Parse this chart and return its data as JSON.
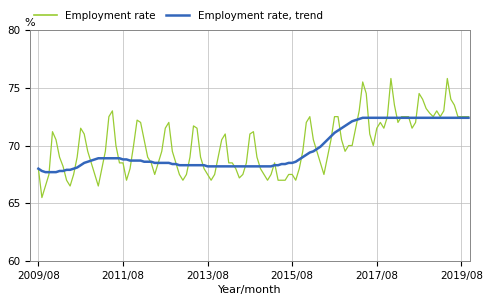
{
  "ylabel_top": "%",
  "xlabel": "Year/month",
  "ylim": [
    60,
    80
  ],
  "yticks": [
    60,
    65,
    70,
    75,
    80
  ],
  "xtick_labels": [
    "2009/08",
    "2011/08",
    "2013/08",
    "2015/08",
    "2017/08",
    "2019/08"
  ],
  "line_color_employment": "#99cc33",
  "line_color_trend": "#3366bb",
  "legend_entries": [
    "Employment rate",
    "Employment rate, trend"
  ],
  "background_color": "#ffffff",
  "grid_color": "#bbbbbb",
  "employment_rate": [
    68.0,
    65.5,
    66.5,
    67.5,
    71.2,
    70.5,
    69.0,
    68.2,
    67.0,
    66.5,
    67.5,
    69.0,
    71.5,
    71.0,
    69.5,
    68.5,
    67.5,
    66.5,
    68.0,
    69.5,
    72.5,
    73.0,
    70.0,
    68.5,
    68.5,
    67.0,
    68.0,
    70.0,
    72.2,
    72.0,
    70.5,
    69.0,
    68.5,
    67.5,
    68.5,
    69.5,
    71.5,
    72.0,
    69.5,
    68.5,
    67.5,
    67.0,
    67.5,
    69.0,
    71.7,
    71.5,
    69.0,
    68.0,
    67.5,
    67.0,
    67.5,
    69.0,
    70.5,
    71.0,
    68.5,
    68.5,
    68.0,
    67.2,
    67.5,
    68.5,
    71.0,
    71.2,
    69.0,
    68.0,
    67.5,
    67.0,
    67.5,
    68.5,
    67.0,
    67.0,
    67.0,
    67.5,
    67.5,
    67.0,
    68.0,
    69.5,
    72.0,
    72.5,
    70.5,
    69.5,
    68.5,
    67.5,
    69.0,
    70.5,
    72.5,
    72.5,
    70.5,
    69.5,
    70.0,
    70.0,
    71.5,
    73.0,
    75.5,
    74.5,
    71.0,
    70.0,
    71.5,
    72.0,
    71.5,
    72.5,
    75.8,
    73.5,
    72.0,
    72.5,
    72.5,
    72.5,
    71.5,
    72.0,
    74.5,
    74.0,
    73.2,
    72.8,
    72.5,
    73.0,
    72.5,
    73.0,
    75.8,
    74.0,
    73.5,
    72.5,
    72.5,
    72.5,
    72.5
  ],
  "trend_rate": [
    68.0,
    67.8,
    67.7,
    67.7,
    67.7,
    67.7,
    67.8,
    67.8,
    67.9,
    67.9,
    68.0,
    68.1,
    68.3,
    68.5,
    68.6,
    68.7,
    68.8,
    68.9,
    68.9,
    68.9,
    68.9,
    68.9,
    68.9,
    68.9,
    68.8,
    68.8,
    68.7,
    68.7,
    68.7,
    68.7,
    68.6,
    68.6,
    68.6,
    68.5,
    68.5,
    68.5,
    68.5,
    68.5,
    68.4,
    68.4,
    68.3,
    68.3,
    68.3,
    68.3,
    68.3,
    68.3,
    68.3,
    68.3,
    68.2,
    68.2,
    68.2,
    68.2,
    68.2,
    68.2,
    68.2,
    68.2,
    68.2,
    68.2,
    68.2,
    68.2,
    68.2,
    68.2,
    68.2,
    68.2,
    68.2,
    68.2,
    68.2,
    68.3,
    68.3,
    68.4,
    68.4,
    68.5,
    68.5,
    68.6,
    68.8,
    69.0,
    69.2,
    69.4,
    69.5,
    69.7,
    69.9,
    70.2,
    70.5,
    70.8,
    71.1,
    71.3,
    71.5,
    71.7,
    71.9,
    72.1,
    72.2,
    72.3,
    72.4,
    72.4,
    72.4,
    72.4,
    72.4,
    72.4,
    72.4,
    72.4,
    72.4,
    72.4,
    72.4,
    72.4,
    72.4,
    72.4,
    72.4,
    72.4,
    72.4,
    72.4,
    72.4,
    72.4,
    72.4,
    72.4,
    72.4,
    72.4,
    72.4,
    72.4,
    72.4,
    72.4,
    72.4,
    72.4,
    72.4
  ]
}
